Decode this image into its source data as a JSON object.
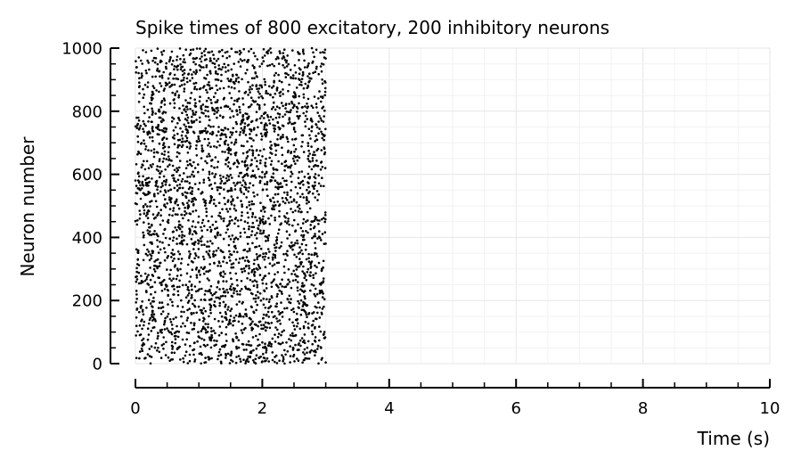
{
  "chart_data": {
    "type": "scatter",
    "title": "Spike times of 800 excitatory, 200 inhibitory neurons",
    "xlabel": "Time (s)",
    "ylabel": "Neuron number",
    "xlim": [
      0,
      10
    ],
    "ylim": [
      0,
      1000
    ],
    "xticks": [
      0,
      2,
      4,
      6,
      8,
      10
    ],
    "xticklabels": [
      "0",
      "2",
      "4",
      "6",
      "8",
      "10"
    ],
    "yticks": [
      0,
      200,
      400,
      600,
      800,
      1000
    ],
    "yticklabels": [
      "0",
      "200",
      "400",
      "600",
      "800",
      "1000"
    ],
    "x_minor_step": 0.5,
    "y_minor_step": 50,
    "grid": true,
    "legend": "none",
    "marker_color": "#000000",
    "series": [
      {
        "spike_time_range": [
          0,
          3
        ],
        "neuron_range": [
          0,
          1000
        ],
        "approx_spike_count": 3200
      }
    ]
  }
}
